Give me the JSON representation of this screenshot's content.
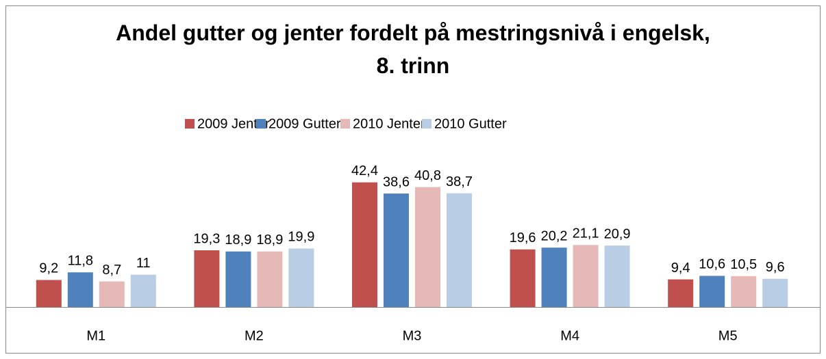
{
  "chart_data": {
    "type": "bar",
    "title": "Andel gutter og jenter fordelt på mestringsnivå i engelsk, 8. trinn",
    "categories": [
      "M1",
      "M2",
      "M3",
      "M4",
      "M5"
    ],
    "series": [
      {
        "name": "2009 Jenter",
        "color": "#c0504d",
        "values": [
          9.2,
          19.3,
          42.4,
          19.6,
          9.4
        ],
        "value_labels": [
          "9,2",
          "19,3",
          "42,4",
          "19,6",
          "9,4"
        ]
      },
      {
        "name": "2009 Gutter",
        "color": "#4f81bd",
        "values": [
          11.8,
          18.9,
          38.6,
          20.2,
          10.6
        ],
        "value_labels": [
          "11,8",
          "18,9",
          "38,6",
          "20,2",
          "10,6"
        ]
      },
      {
        "name": "2010 Jenter",
        "color": "#e6b9b8",
        "values": [
          8.7,
          18.9,
          40.8,
          21.1,
          10.5
        ],
        "value_labels": [
          "8,7",
          "18,9",
          "40,8",
          "21,1",
          "10,5"
        ]
      },
      {
        "name": "2010 Gutter",
        "color": "#b9cde5",
        "values": [
          11,
          19.9,
          38.7,
          20.9,
          9.6
        ],
        "value_labels": [
          "11",
          "19,9",
          "38,7",
          "20,9",
          "9,6"
        ]
      }
    ],
    "ylim": [
      0,
      45
    ],
    "legend": "top"
  }
}
